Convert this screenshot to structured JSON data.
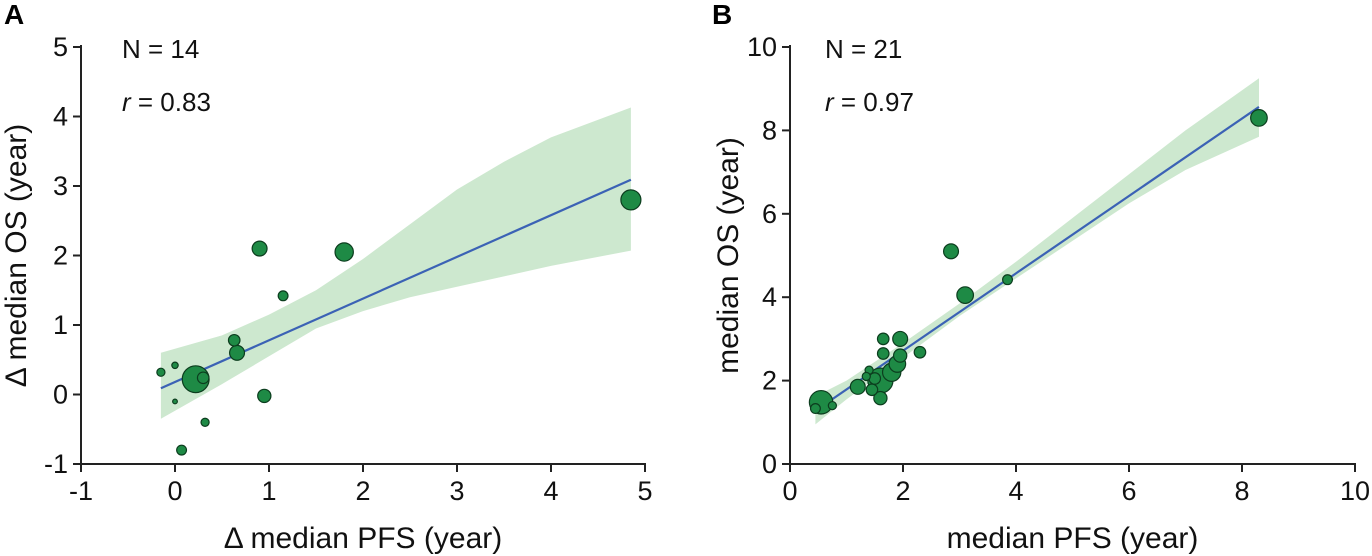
{
  "chart_data": [
    {
      "panel_letter": "A",
      "type": "scatter",
      "title": "",
      "xlabel": "Δ median PFS (year)",
      "ylabel": "Δ median OS (year)",
      "xlim": [
        -1,
        5
      ],
      "ylim": [
        -1,
        5
      ],
      "xticks": [
        -1,
        0,
        1,
        2,
        3,
        4,
        5
      ],
      "yticks": [
        -1,
        0,
        1,
        2,
        3,
        4,
        5
      ],
      "grid": false,
      "annotations": {
        "n_label": "N = 14",
        "r_symbol": "r",
        "r_value": " = 0.83"
      },
      "points": [
        {
          "x": -0.15,
          "y": 0.32,
          "size": 3
        },
        {
          "x": 0.0,
          "y": 0.42,
          "size": 2
        },
        {
          "x": 0.0,
          "y": -0.1,
          "size": 1
        },
        {
          "x": 0.07,
          "y": -0.8,
          "size": 4
        },
        {
          "x": 0.22,
          "y": 0.22,
          "size": 14
        },
        {
          "x": 0.3,
          "y": 0.24,
          "size": 5
        },
        {
          "x": 0.32,
          "y": -0.4,
          "size": 3
        },
        {
          "x": 0.63,
          "y": 0.78,
          "size": 5
        },
        {
          "x": 0.66,
          "y": 0.6,
          "size": 7
        },
        {
          "x": 0.9,
          "y": 2.1,
          "size": 7
        },
        {
          "x": 0.95,
          "y": -0.02,
          "size": 6
        },
        {
          "x": 1.15,
          "y": 1.42,
          "size": 4
        },
        {
          "x": 1.8,
          "y": 2.05,
          "size": 9
        },
        {
          "x": 4.85,
          "y": 2.8,
          "size": 10
        }
      ],
      "regression": {
        "slope": 0.6,
        "intercept": 0.18,
        "x_range": [
          -0.15,
          4.85
        ]
      },
      "ci_band": {
        "x": [
          -0.15,
          0.5,
          1.0,
          1.5,
          2.0,
          2.5,
          3.0,
          3.5,
          4.0,
          4.85
        ],
        "lower": [
          -0.35,
          0.15,
          0.55,
          0.95,
          1.2,
          1.4,
          1.55,
          1.7,
          1.85,
          2.07
        ],
        "upper": [
          0.6,
          0.85,
          1.15,
          1.5,
          1.95,
          2.45,
          2.95,
          3.35,
          3.7,
          4.13
        ]
      }
    },
    {
      "panel_letter": "B",
      "type": "scatter",
      "title": "",
      "xlabel": "median PFS (year)",
      "ylabel": "median OS (year)",
      "xlim": [
        0,
        10
      ],
      "ylim": [
        0,
        10
      ],
      "xticks": [
        0,
        2,
        4,
        6,
        8,
        10
      ],
      "yticks": [
        0,
        2,
        4,
        6,
        8,
        10
      ],
      "grid": false,
      "annotations": {
        "n_label": "N = 21",
        "r_symbol": "r",
        "r_value": " = 0.97"
      },
      "points": [
        {
          "x": 0.45,
          "y": 1.33,
          "size": 4
        },
        {
          "x": 0.55,
          "y": 1.48,
          "size": 12
        },
        {
          "x": 0.75,
          "y": 1.4,
          "size": 3
        },
        {
          "x": 1.2,
          "y": 1.85,
          "size": 7
        },
        {
          "x": 1.4,
          "y": 2.25,
          "size": 3
        },
        {
          "x": 1.45,
          "y": 1.78,
          "size": 5
        },
        {
          "x": 1.6,
          "y": 2.0,
          "size": 13
        },
        {
          "x": 1.6,
          "y": 1.58,
          "size": 6
        },
        {
          "x": 1.65,
          "y": 2.65,
          "size": 5
        },
        {
          "x": 1.65,
          "y": 3.0,
          "size": 5
        },
        {
          "x": 1.8,
          "y": 2.2,
          "size": 9
        },
        {
          "x": 1.9,
          "y": 2.4,
          "size": 8
        },
        {
          "x": 1.95,
          "y": 2.6,
          "size": 6
        },
        {
          "x": 1.95,
          "y": 3.0,
          "size": 7
        },
        {
          "x": 1.5,
          "y": 2.05,
          "size": 5
        },
        {
          "x": 2.3,
          "y": 2.68,
          "size": 5
        },
        {
          "x": 2.85,
          "y": 5.1,
          "size": 7
        },
        {
          "x": 3.1,
          "y": 4.05,
          "size": 8
        },
        {
          "x": 3.85,
          "y": 4.42,
          "size": 4
        },
        {
          "x": 8.3,
          "y": 8.3,
          "size": 8
        },
        {
          "x": 1.35,
          "y": 2.1,
          "size": 3
        }
      ],
      "regression": {
        "slope": 0.928,
        "intercept": 0.86,
        "x_range": [
          0.45,
          8.3
        ]
      },
      "ci_band": {
        "x": [
          0.45,
          1.0,
          2.0,
          3.0,
          4.0,
          5.0,
          6.0,
          7.0,
          8.3
        ],
        "lower": [
          0.95,
          1.55,
          2.55,
          3.55,
          4.45,
          5.35,
          6.25,
          7.05,
          7.85
        ],
        "upper": [
          1.62,
          2.0,
          2.9,
          3.85,
          4.85,
          5.9,
          6.95,
          8.0,
          9.25
        ]
      }
    }
  ]
}
